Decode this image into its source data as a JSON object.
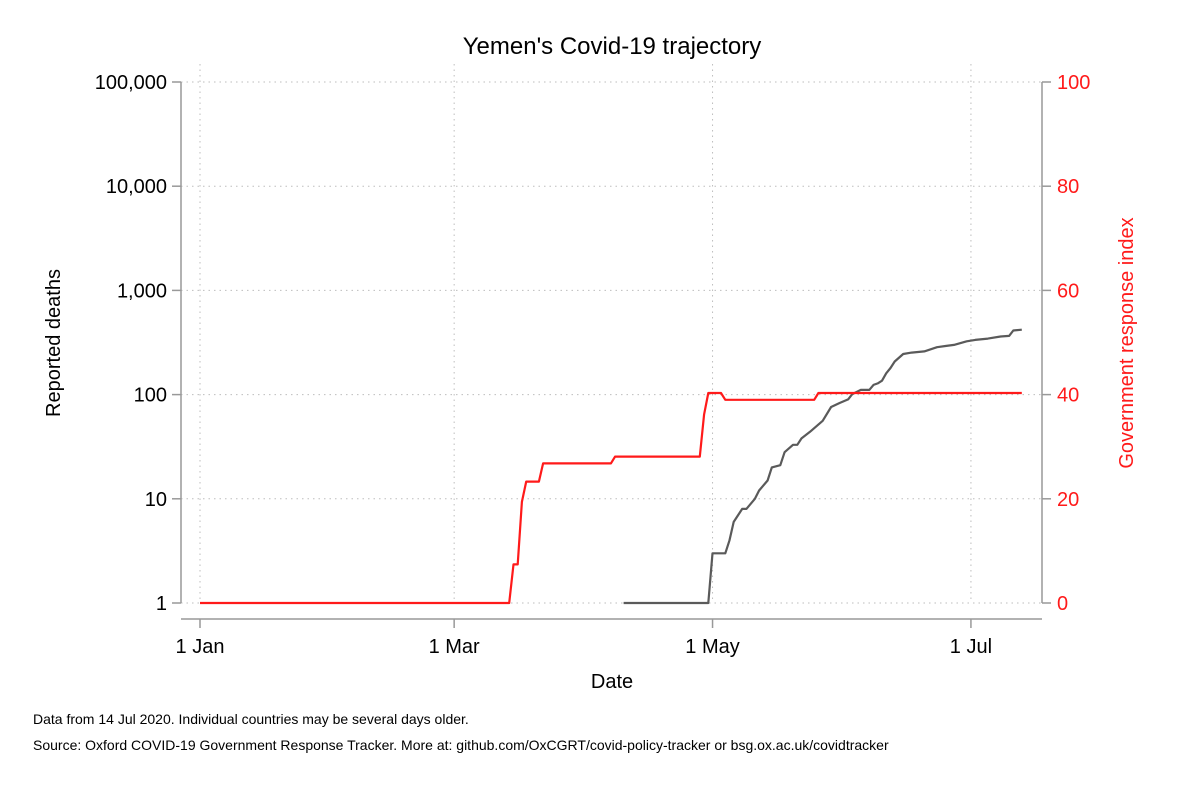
{
  "chart_data": {
    "type": "line",
    "title": "Yemen's Covid-19 trajectory",
    "xlabel": "Date",
    "ylabel": "Reported deaths",
    "y2label": "Government response index",
    "x_tick_labels": [
      "1 Jan",
      "1 Mar",
      "1 May",
      "1 Jul"
    ],
    "y_tick_labels": [
      "1",
      "10",
      "100",
      "1,000",
      "10,000",
      "100,000"
    ],
    "y2_tick_labels": [
      "0",
      "20",
      "40",
      "60",
      "80",
      "100"
    ],
    "y_scale": "log",
    "y_range": [
      1,
      100000
    ],
    "y2_range": [
      0,
      100
    ],
    "x_range": [
      "2020-01-01",
      "2020-07-14"
    ],
    "grid": true,
    "colors": {
      "deaths": "#5a5a5a",
      "response": "#ff1a1a",
      "axis": "#999999",
      "grid": "#bdbdbd"
    },
    "series": [
      {
        "axis": "left",
        "color": "#5a5a5a",
        "points": [
          [
            "2020-04-10",
            1
          ],
          [
            "2020-04-30",
            1
          ],
          [
            "2020-05-01",
            3
          ],
          [
            "2020-05-04",
            3
          ],
          [
            "2020-05-05",
            4
          ],
          [
            "2020-05-06",
            6
          ],
          [
            "2020-05-08",
            8
          ],
          [
            "2020-05-09",
            8
          ],
          [
            "2020-05-11",
            10
          ],
          [
            "2020-05-12",
            12
          ],
          [
            "2020-05-14",
            15
          ],
          [
            "2020-05-15",
            20
          ],
          [
            "2020-05-17",
            21
          ],
          [
            "2020-05-18",
            28
          ],
          [
            "2020-05-20",
            33
          ],
          [
            "2020-05-21",
            33
          ],
          [
            "2020-05-22",
            38
          ],
          [
            "2020-05-24",
            44
          ],
          [
            "2020-05-27",
            56
          ],
          [
            "2020-05-29",
            76
          ],
          [
            "2020-05-31",
            83
          ],
          [
            "2020-06-02",
            90
          ],
          [
            "2020-06-03",
            101
          ],
          [
            "2020-06-05",
            111
          ],
          [
            "2020-06-07",
            111
          ],
          [
            "2020-06-08",
            124
          ],
          [
            "2020-06-09",
            128
          ],
          [
            "2020-06-10",
            136
          ],
          [
            "2020-06-11",
            160
          ],
          [
            "2020-06-12",
            180
          ],
          [
            "2020-06-13",
            208
          ],
          [
            "2020-06-15",
            245
          ],
          [
            "2020-06-17",
            253
          ],
          [
            "2020-06-20",
            260
          ],
          [
            "2020-06-23",
            285
          ],
          [
            "2020-06-25",
            293
          ],
          [
            "2020-06-27",
            300
          ],
          [
            "2020-06-30",
            325
          ],
          [
            "2020-07-02",
            335
          ],
          [
            "2020-07-05",
            345
          ],
          [
            "2020-07-08",
            361
          ],
          [
            "2020-07-10",
            366
          ],
          [
            "2020-07-11",
            412
          ],
          [
            "2020-07-13",
            420
          ]
        ]
      },
      {
        "axis": "right",
        "color": "#ff1a1a",
        "points": [
          [
            "2020-01-01",
            0
          ],
          [
            "2020-03-14",
            0
          ],
          [
            "2020-03-15",
            7.4
          ],
          [
            "2020-03-16",
            7.4
          ],
          [
            "2020-03-17",
            19.4
          ],
          [
            "2020-03-18",
            23.3
          ],
          [
            "2020-03-19",
            23.3
          ],
          [
            "2020-03-21",
            23.3
          ],
          [
            "2020-03-22",
            26.8
          ],
          [
            "2020-04-07",
            26.8
          ],
          [
            "2020-04-08",
            28.1
          ],
          [
            "2020-04-28",
            28.1
          ],
          [
            "2020-04-29",
            36.2
          ],
          [
            "2020-04-30",
            40.3
          ],
          [
            "2020-05-03",
            40.3
          ],
          [
            "2020-05-04",
            39.0
          ],
          [
            "2020-05-25",
            39.0
          ],
          [
            "2020-05-26",
            40.3
          ],
          [
            "2020-07-13",
            40.3
          ]
        ]
      }
    ],
    "notes": [
      "Data from 14 Jul 2020. Individual countries may be several days older.",
      "Source: Oxford COVID-19 Government Response Tracker. More at: github.com/OxCGRT/covid-policy-tracker or bsg.ox.ac.uk/covidtracker"
    ]
  }
}
